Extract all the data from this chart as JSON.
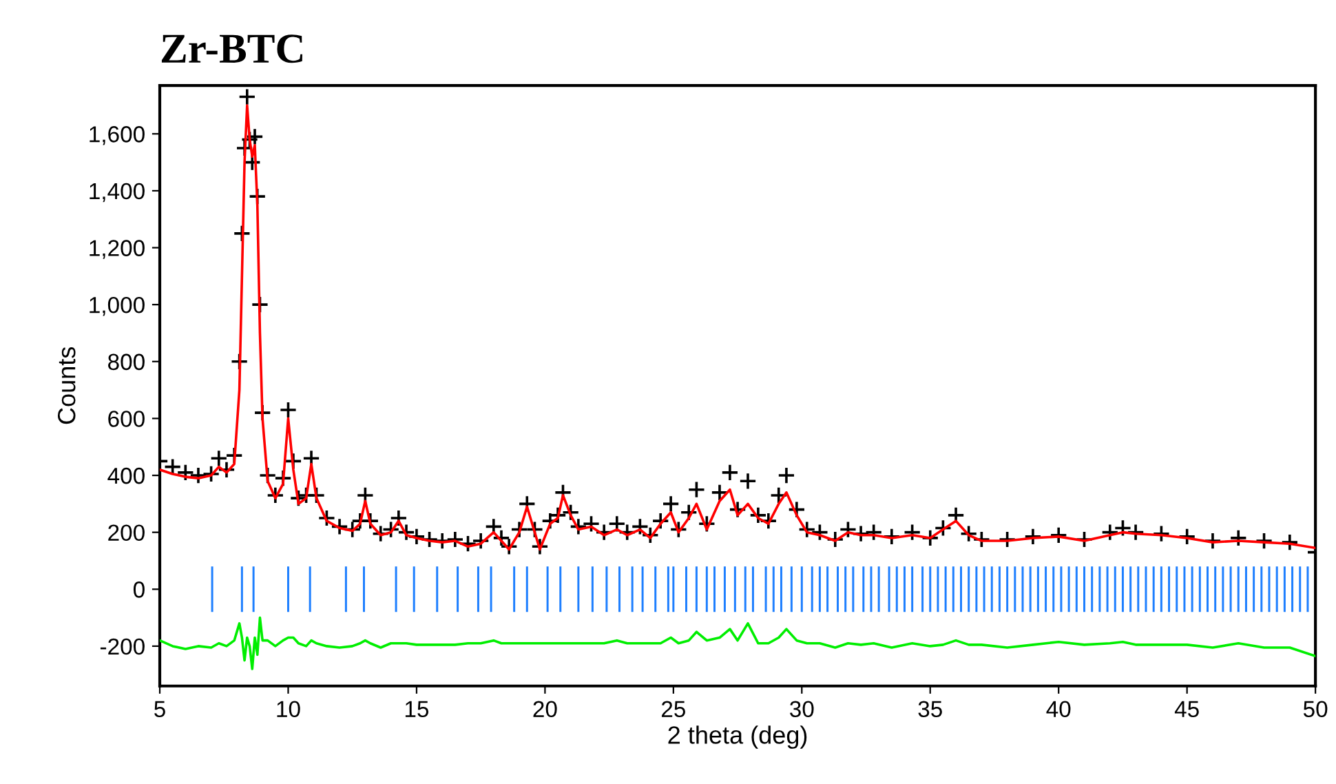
{
  "chart_data": {
    "type": "scatter",
    "title": "Zr-BTC",
    "xlabel": "2 theta (deg)",
    "ylabel": "Counts",
    "xlim": [
      5,
      50
    ],
    "xticks": [
      5,
      10,
      15,
      20,
      25,
      30,
      35,
      40,
      45,
      50
    ],
    "ylim": [
      -340,
      1770
    ],
    "yticks": [
      {
        "value": -200,
        "label": "-200"
      },
      0,
      200,
      400,
      600,
      800,
      {
        "value": 1000,
        "label": "1,000"
      },
      {
        "value": 1200,
        "label": "1,200"
      },
      {
        "value": 1400,
        "label": "1,400"
      },
      {
        "value": 1600,
        "label": "1,600"
      }
    ],
    "grid": false,
    "legend": false,
    "x": [
      5.0,
      5.5,
      6.0,
      6.5,
      7.0,
      7.3,
      7.6,
      7.9,
      8.1,
      8.2,
      8.3,
      8.4,
      8.5,
      8.6,
      8.7,
      8.8,
      8.9,
      9.0,
      9.2,
      9.5,
      9.8,
      10.0,
      10.2,
      10.4,
      10.7,
      10.9,
      11.1,
      11.5,
      12.0,
      12.5,
      12.8,
      13.0,
      13.2,
      13.6,
      14.0,
      14.3,
      14.6,
      15.0,
      15.5,
      16.0,
      16.5,
      17.0,
      17.5,
      18.0,
      18.3,
      18.6,
      19.0,
      19.3,
      19.6,
      19.8,
      20.2,
      20.5,
      20.7,
      21.0,
      21.3,
      21.8,
      22.3,
      22.8,
      23.2,
      23.7,
      24.1,
      24.5,
      24.9,
      25.2,
      25.6,
      25.9,
      26.3,
      26.8,
      27.2,
      27.5,
      27.9,
      28.3,
      28.7,
      29.1,
      29.4,
      29.8,
      30.2,
      30.7,
      31.3,
      31.8,
      32.3,
      32.8,
      33.5,
      34.3,
      35.0,
      35.5,
      36.0,
      36.5,
      37.0,
      38.0,
      39.0,
      40.0,
      41.0,
      42.0,
      42.5,
      43.0,
      44.0,
      45.0,
      46.0,
      47.0,
      48.0,
      49.0,
      50.0
    ],
    "series": [
      {
        "color": "#000000",
        "marker": "cross",
        "values": [
          450,
          430,
          410,
          400,
          405,
          460,
          420,
          470,
          800,
          1250,
          1550,
          1730,
          1580,
          1500,
          1590,
          1380,
          1000,
          620,
          400,
          330,
          390,
          630,
          450,
          320,
          330,
          460,
          330,
          250,
          220,
          210,
          240,
          330,
          240,
          195,
          210,
          250,
          200,
          185,
          175,
          170,
          175,
          160,
          170,
          220,
          180,
          150,
          210,
          300,
          210,
          150,
          240,
          260,
          340,
          270,
          220,
          230,
          200,
          230,
          200,
          220,
          190,
          240,
          300,
          210,
          270,
          350,
          230,
          340,
          410,
          280,
          380,
          260,
          240,
          330,
          400,
          280,
          210,
          200,
          175,
          210,
          195,
          200,
          185,
          200,
          180,
          215,
          260,
          195,
          175,
          175,
          185,
          190,
          175,
          200,
          215,
          200,
          195,
          185,
          170,
          180,
          170,
          165,
          130
        ]
      },
      {
        "type": "line",
        "color": "#ff0000",
        "values": [
          420,
          405,
          395,
          390,
          400,
          430,
          410,
          440,
          700,
          1100,
          1500,
          1700,
          1580,
          1520,
          1560,
          1350,
          900,
          600,
          380,
          320,
          370,
          600,
          420,
          300,
          320,
          440,
          320,
          240,
          215,
          205,
          230,
          310,
          230,
          190,
          200,
          240,
          190,
          180,
          170,
          165,
          170,
          150,
          160,
          200,
          170,
          140,
          200,
          290,
          200,
          140,
          230,
          250,
          330,
          260,
          210,
          220,
          190,
          210,
          190,
          210,
          180,
          230,
          270,
          200,
          250,
          300,
          210,
          310,
          350,
          260,
          300,
          250,
          230,
          300,
          340,
          260,
          200,
          190,
          170,
          200,
          190,
          190,
          180,
          190,
          180,
          210,
          240,
          190,
          170,
          170,
          180,
          185,
          170,
          190,
          200,
          195,
          190,
          180,
          165,
          170,
          165,
          160,
          145
        ]
      },
      {
        "type": "bar",
        "color": "#1e7fff",
        "x": [
          7.04,
          8.2,
          8.65,
          10.0,
          10.85,
          12.25,
          12.95,
          14.2,
          14.9,
          15.8,
          16.6,
          17.4,
          17.9,
          18.8,
          19.3,
          20.1,
          20.6,
          21.3,
          21.85,
          22.4,
          22.9,
          23.4,
          23.8,
          24.3,
          24.8,
          25.0,
          25.5,
          25.9,
          26.3,
          26.6,
          27.0,
          27.4,
          27.8,
          28.1,
          28.6,
          28.9,
          29.2,
          29.6,
          30.0,
          30.4,
          30.7,
          31.0,
          31.4,
          31.7,
          32.0,
          32.4,
          32.7,
          33.0,
          33.4,
          33.7,
          34.0,
          34.3,
          34.7,
          35.0,
          35.3,
          35.6,
          35.9,
          36.2,
          36.5,
          36.8,
          37.1,
          37.4,
          37.7,
          38.0,
          38.3,
          38.6,
          38.9,
          39.2,
          39.5,
          39.8,
          40.1,
          40.4,
          40.7,
          41.0,
          41.3,
          41.6,
          41.9,
          42.2,
          42.5,
          42.8,
          43.1,
          43.4,
          43.7,
          44.0,
          44.3,
          44.6,
          44.9,
          45.2,
          45.5,
          45.8,
          46.1,
          46.4,
          46.7,
          47.0,
          47.3,
          47.6,
          47.9,
          48.2,
          48.5,
          48.8,
          49.1,
          49.4,
          49.7
        ],
        "values": [
          160,
          160,
          160,
          160,
          160,
          160,
          160,
          160,
          160,
          160,
          160,
          160,
          160,
          160,
          160,
          160,
          160,
          160,
          160,
          160,
          160,
          160,
          160,
          160,
          160,
          160,
          160,
          160,
          160,
          160,
          160,
          160,
          160,
          160,
          160,
          160,
          160,
          160,
          160,
          160,
          160,
          160,
          160,
          160,
          160,
          160,
          160,
          160,
          160,
          160,
          160,
          160,
          160,
          160,
          160,
          160,
          160,
          160,
          160,
          160,
          160,
          160,
          160,
          160,
          160,
          160,
          160,
          160,
          160,
          160,
          160,
          160,
          160,
          160,
          160,
          160,
          160,
          160,
          160,
          160,
          160,
          160,
          160,
          160,
          160,
          160,
          160,
          160,
          160,
          160,
          160,
          160,
          160,
          160,
          160,
          160,
          160,
          160,
          160,
          160,
          160,
          160,
          160
        ],
        "base": [
          -80,
          -80,
          -80,
          -80,
          -80,
          -80,
          -80,
          -80,
          -80,
          -80,
          -80,
          -80,
          -80,
          -80,
          -80,
          -80,
          -80,
          -80,
          -80,
          -80,
          -80,
          -80,
          -80,
          -80,
          -80,
          -80,
          -80,
          -80,
          -80,
          -80,
          -80,
          -80,
          -80,
          -80,
          -80,
          -80,
          -80,
          -80,
          -80,
          -80,
          -80,
          -80,
          -80,
          -80,
          -80,
          -80,
          -80,
          -80,
          -80,
          -80,
          -80,
          -80,
          -80,
          -80,
          -80,
          -80,
          -80,
          -80,
          -80,
          -80,
          -80,
          -80,
          -80,
          -80,
          -80,
          -80,
          -80,
          -80,
          -80,
          -80,
          -80,
          -80,
          -80,
          -80,
          -80,
          -80,
          -80,
          -80,
          -80,
          -80,
          -80,
          -80,
          -80,
          -80,
          -80,
          -80,
          -80,
          -80,
          -80,
          -80,
          -80,
          -80,
          -80,
          -80,
          -80,
          -80,
          -80,
          -80,
          -80,
          -80,
          -80,
          -80,
          -80
        ]
      },
      {
        "type": "line",
        "color": "#00ee00",
        "values": [
          -180,
          -200,
          -210,
          -200,
          -205,
          -190,
          -200,
          -180,
          -120,
          -170,
          -250,
          -170,
          -200,
          -280,
          -170,
          -230,
          -100,
          -180,
          -180,
          -200,
          -180,
          -170,
          -170,
          -190,
          -200,
          -180,
          -190,
          -200,
          -205,
          -200,
          -190,
          -180,
          -190,
          -205,
          -190,
          -190,
          -190,
          -195,
          -195,
          -195,
          -195,
          -190,
          -190,
          -180,
          -190,
          -190,
          -190,
          -190,
          -190,
          -190,
          -190,
          -190,
          -190,
          -190,
          -190,
          -190,
          -190,
          -180,
          -190,
          -190,
          -190,
          -190,
          -170,
          -190,
          -180,
          -150,
          -180,
          -170,
          -140,
          -180,
          -120,
          -190,
          -190,
          -170,
          -140,
          -180,
          -190,
          -190,
          -205,
          -190,
          -195,
          -190,
          -205,
          -190,
          -200,
          -195,
          -180,
          -195,
          -195,
          -205,
          -195,
          -185,
          -195,
          -190,
          -185,
          -195,
          -195,
          -195,
          -205,
          -190,
          -205,
          -205,
          -235
        ]
      }
    ]
  }
}
